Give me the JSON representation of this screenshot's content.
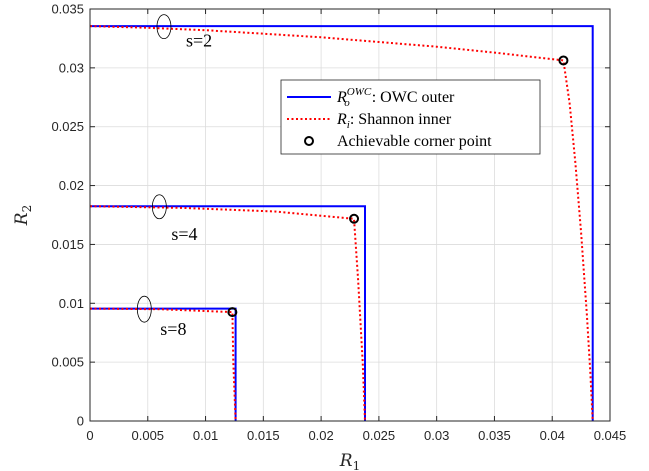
{
  "chart_data": {
    "type": "line",
    "xlabel": "R",
    "xlabel_sub": "1",
    "ylabel": "R",
    "ylabel_sub": "2",
    "xlim": [
      0,
      0.045
    ],
    "ylim": [
      0,
      0.035
    ],
    "xticks": [
      "0",
      "0.005",
      "0.01",
      "0.015",
      "0.02",
      "0.025",
      "0.03",
      "0.035",
      "0.04",
      "0.045"
    ],
    "yticks": [
      "0",
      "0.005",
      "0.01",
      "0.015",
      "0.02",
      "0.025",
      "0.03",
      "0.035"
    ],
    "grid": true,
    "legend_position": "top-right",
    "legend": [
      {
        "sym": "R",
        "sup": "OWC",
        "sub": "o",
        "rest": ": OWC outer",
        "color": "#0000ff",
        "style": "solid"
      },
      {
        "sym": "R",
        "sup": "",
        "sub": "i",
        "rest": ": Shannon inner",
        "color": "#ff0000",
        "style": "dotted"
      },
      {
        "sym": "",
        "sup": "",
        "sub": "",
        "rest": "Achievable corner point",
        "color": "#000000",
        "style": "marker"
      }
    ],
    "series": [
      {
        "label": "s=2",
        "outer": [
          [
            0,
            0.03355
          ],
          [
            0.0435,
            0.03355
          ],
          [
            0.0435,
            0
          ]
        ],
        "inner": [
          [
            0,
            0.03355
          ],
          [
            0.005,
            0.0334
          ],
          [
            0.01,
            0.0332
          ],
          [
            0.015,
            0.0329
          ],
          [
            0.02,
            0.0326
          ],
          [
            0.025,
            0.0322
          ],
          [
            0.03,
            0.0318
          ],
          [
            0.035,
            0.0313
          ],
          [
            0.04097,
            0.03063
          ],
          [
            0.0415,
            0.027
          ],
          [
            0.042,
            0.022
          ],
          [
            0.0425,
            0.016
          ],
          [
            0.043,
            0.009
          ],
          [
            0.0433,
            0.004
          ],
          [
            0.0435,
            0
          ]
        ],
        "corner": [
          0.04097,
          0.03063
        ],
        "ellipse_at": [
          0.0064,
          0.0335
        ]
      },
      {
        "label": "s=4",
        "outer": [
          [
            0,
            0.01825
          ],
          [
            0.0238,
            0.01825
          ],
          [
            0.0238,
            0
          ]
        ],
        "inner": [
          [
            0,
            0.01825
          ],
          [
            0.008,
            0.0181
          ],
          [
            0.016,
            0.0178
          ],
          [
            0.02285,
            0.01718
          ],
          [
            0.0232,
            0.012
          ],
          [
            0.0236,
            0.005
          ],
          [
            0.0238,
            0
          ]
        ],
        "corner": [
          0.02285,
          0.01718
        ],
        "ellipse_at": [
          0.006,
          0.0182
        ]
      },
      {
        "label": "s=8",
        "outer": [
          [
            0,
            0.00955
          ],
          [
            0.0126,
            0.00955
          ],
          [
            0.0126,
            0
          ]
        ],
        "inner": [
          [
            0,
            0.00955
          ],
          [
            0.006,
            0.0095
          ],
          [
            0.01232,
            0.00925
          ],
          [
            0.0124,
            0.005
          ],
          [
            0.0126,
            0
          ]
        ],
        "corner": [
          0.01232,
          0.00925
        ],
        "ellipse_at": [
          0.0047,
          0.0095
        ]
      }
    ]
  }
}
